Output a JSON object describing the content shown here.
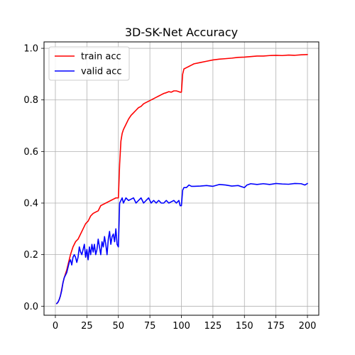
{
  "chart_data": {
    "type": "line",
    "title": "3D-SK-Net Accuracy",
    "xlabel": "",
    "ylabel": "",
    "xlim": [
      -9,
      209
    ],
    "ylim": [
      -0.035,
      1.025
    ],
    "xticks": [
      0,
      25,
      50,
      75,
      100,
      125,
      150,
      175,
      200
    ],
    "yticks": [
      0.0,
      0.2,
      0.4,
      0.6,
      0.8,
      1.0
    ],
    "grid": true,
    "legend": "top-left",
    "series": [
      {
        "name": "train acc",
        "color": "#ff0000",
        "x": [
          1,
          2,
          3,
          4,
          5,
          6,
          7,
          8,
          9,
          10,
          12,
          14,
          16,
          18,
          20,
          22,
          24,
          26,
          28,
          30,
          32,
          34,
          36,
          38,
          40,
          42,
          44,
          46,
          48,
          50,
          51,
          52,
          53,
          54,
          55,
          56,
          58,
          60,
          62,
          64,
          66,
          68,
          70,
          72,
          74,
          76,
          78,
          80,
          82,
          84,
          86,
          88,
          90,
          92,
          94,
          96,
          98,
          99,
          100,
          101,
          102,
          104,
          106,
          108,
          110,
          115,
          120,
          125,
          130,
          135,
          140,
          145,
          150,
          155,
          160,
          165,
          170,
          175,
          180,
          185,
          190,
          195,
          200
        ],
        "y": [
          0.01,
          0.015,
          0.025,
          0.04,
          0.065,
          0.09,
          0.11,
          0.125,
          0.14,
          0.16,
          0.2,
          0.23,
          0.25,
          0.26,
          0.28,
          0.3,
          0.32,
          0.33,
          0.35,
          0.36,
          0.365,
          0.37,
          0.39,
          0.395,
          0.4,
          0.405,
          0.41,
          0.415,
          0.42,
          0.42,
          0.55,
          0.64,
          0.67,
          0.685,
          0.695,
          0.705,
          0.725,
          0.74,
          0.75,
          0.76,
          0.77,
          0.775,
          0.785,
          0.79,
          0.795,
          0.8,
          0.805,
          0.81,
          0.815,
          0.82,
          0.825,
          0.828,
          0.832,
          0.83,
          0.835,
          0.835,
          0.832,
          0.83,
          0.83,
          0.9,
          0.92,
          0.925,
          0.93,
          0.935,
          0.94,
          0.945,
          0.95,
          0.955,
          0.958,
          0.96,
          0.962,
          0.965,
          0.966,
          0.968,
          0.97,
          0.97,
          0.972,
          0.973,
          0.972,
          0.974,
          0.973,
          0.975,
          0.976
        ]
      },
      {
        "name": "valid acc",
        "color": "#0000ff",
        "x": [
          1,
          2,
          3,
          4,
          5,
          6,
          7,
          8,
          9,
          10,
          11,
          12,
          13,
          14,
          15,
          16,
          17,
          18,
          19,
          20,
          21,
          22,
          23,
          24,
          25,
          26,
          27,
          28,
          29,
          30,
          31,
          32,
          33,
          34,
          35,
          36,
          37,
          38,
          39,
          40,
          41,
          42,
          43,
          44,
          45,
          46,
          47,
          48,
          49,
          50,
          51,
          52,
          53,
          54,
          55,
          56,
          58,
          60,
          62,
          64,
          66,
          68,
          70,
          72,
          74,
          76,
          78,
          80,
          82,
          84,
          86,
          88,
          90,
          92,
          94,
          96,
          98,
          99,
          100,
          101,
          102,
          104,
          106,
          108,
          110,
          115,
          120,
          125,
          130,
          135,
          140,
          145,
          150,
          152,
          155,
          160,
          165,
          170,
          175,
          180,
          185,
          190,
          195,
          198,
          200
        ],
        "y": [
          0.01,
          0.015,
          0.025,
          0.04,
          0.06,
          0.09,
          0.11,
          0.12,
          0.13,
          0.15,
          0.17,
          0.18,
          0.16,
          0.19,
          0.2,
          0.19,
          0.17,
          0.19,
          0.23,
          0.21,
          0.2,
          0.22,
          0.24,
          0.19,
          0.22,
          0.18,
          0.23,
          0.2,
          0.24,
          0.21,
          0.24,
          0.2,
          0.22,
          0.26,
          0.23,
          0.2,
          0.25,
          0.23,
          0.27,
          0.24,
          0.2,
          0.26,
          0.29,
          0.24,
          0.27,
          0.28,
          0.25,
          0.3,
          0.24,
          0.23,
          0.4,
          0.41,
          0.42,
          0.4,
          0.41,
          0.42,
          0.41,
          0.415,
          0.42,
          0.4,
          0.41,
          0.42,
          0.4,
          0.41,
          0.42,
          0.4,
          0.41,
          0.4,
          0.41,
          0.4,
          0.4,
          0.41,
          0.4,
          0.405,
          0.41,
          0.4,
          0.41,
          0.39,
          0.39,
          0.45,
          0.46,
          0.46,
          0.47,
          0.465,
          0.465,
          0.466,
          0.468,
          0.465,
          0.472,
          0.47,
          0.466,
          0.468,
          0.46,
          0.47,
          0.475,
          0.472,
          0.475,
          0.472,
          0.476,
          0.474,
          0.473,
          0.476,
          0.475,
          0.47,
          0.476
        ]
      }
    ]
  }
}
